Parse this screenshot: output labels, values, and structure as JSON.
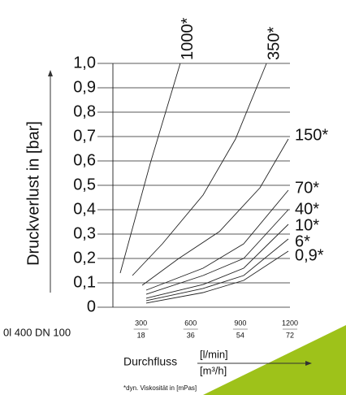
{
  "chart_data": {
    "type": "line",
    "y_label": "Druckverlust in [bar]",
    "x_label": "Durchfluss",
    "x_unit": "[l/min]",
    "x2_unit": "[m³/h]",
    "corner_label": "0l 400 DN 100",
    "footnote": "*dyn. Viskosität in [mPas]",
    "xlim": [
      130,
      1200
    ],
    "xticks": [
      300,
      600,
      900,
      1200
    ],
    "x2lim": [
      7.8,
      72
    ],
    "x2ticks": [
      18,
      36,
      54,
      72
    ],
    "ylim": [
      0,
      1
    ],
    "yticks": [
      {
        "value": 0,
        "label": "0"
      },
      {
        "value": 0.1,
        "label": "0,1"
      },
      {
        "value": 0.2,
        "label": "0,2"
      },
      {
        "value": 0.3,
        "label": "0,3"
      },
      {
        "value": 0.4,
        "label": "0,4"
      },
      {
        "value": 0.5,
        "label": "0,5"
      },
      {
        "value": 0.6,
        "label": "0,6"
      },
      {
        "value": 0.7,
        "label": "0,7"
      },
      {
        "value": 0.8,
        "label": "0,8"
      },
      {
        "value": 0.9,
        "label": "0,9"
      },
      {
        "value": 1,
        "label": "1,0"
      }
    ],
    "grid": true,
    "series": [
      {
        "name": "1000*",
        "color": "#222",
        "x": [
          174,
          356,
          537
        ],
        "values": [
          0.14,
          0.59,
          1.0
        ]
      },
      {
        "name": "350*",
        "color": "#222",
        "x": [
          248,
          429,
          675,
          871,
          1058
        ],
        "values": [
          0.13,
          0.26,
          0.46,
          0.69,
          1.0
        ]
      },
      {
        "name": "150*",
        "color": "#222",
        "x": [
          307,
          528,
          773,
          1019,
          1190
        ],
        "values": [
          0.09,
          0.2,
          0.31,
          0.49,
          0.69
        ]
      },
      {
        "name": "70*",
        "color": "#222",
        "x": [
          331,
          675,
          920,
          1190
        ],
        "values": [
          0.07,
          0.16,
          0.26,
          0.48
        ]
      },
      {
        "name": "40*",
        "color": "#222",
        "x": [
          331,
          675,
          920,
          1190
        ],
        "values": [
          0.053,
          0.13,
          0.2,
          0.4
        ]
      },
      {
        "name": "10*",
        "color": "#222",
        "x": [
          331,
          675,
          920,
          1190
        ],
        "values": [
          0.037,
          0.093,
          0.16,
          0.34
        ]
      },
      {
        "name": "6*",
        "color": "#222",
        "x": [
          331,
          675,
          920,
          1190
        ],
        "values": [
          0.027,
          0.077,
          0.13,
          0.28
        ]
      },
      {
        "name": "0,9*",
        "color": "#222",
        "x": [
          331,
          675,
          920,
          1190
        ],
        "values": [
          0.017,
          0.06,
          0.11,
          0.23
        ]
      }
    ]
  }
}
